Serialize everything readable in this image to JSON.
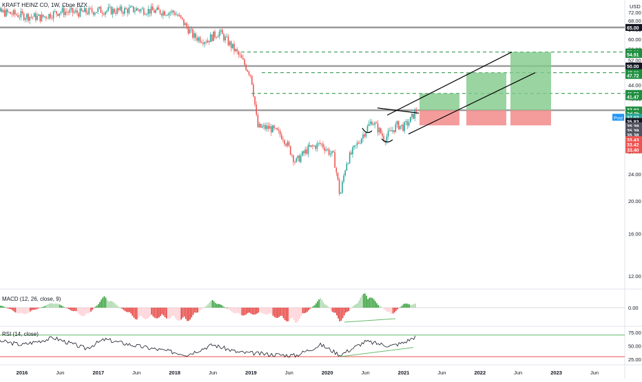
{
  "header": {
    "symbol_line": "KRAFT HEINZ CO, 1W, Cboe BZX",
    "currency": "USD"
  },
  "colors": {
    "up": "#26a69a",
    "down": "#ef5350",
    "hline": "#9a9a9a",
    "target_dash": "#1e8e3e",
    "profit_zone": "#7fc98a",
    "stop_zone": "#f28b8b",
    "macd_up_strong": "#2e9d33",
    "macd_up_weak": "#a5d6a7",
    "macd_down_strong": "#e53935",
    "macd_down_weak": "#ffcdd2",
    "rsi_line": "#131722",
    "rsi_upper": "#4caf50",
    "rsi_lower": "#e53935",
    "trendline": "#000000",
    "divergence": "#66bb6a"
  },
  "price_axis": {
    "ticks": [
      "72.00",
      "68.00",
      "64.00",
      "60.00",
      "56.00",
      "52.00",
      "48.00",
      "44.00",
      "40.00",
      "36.00",
      "32.00",
      "28.00",
      "24.00",
      "20.00",
      "16.00",
      "12.00"
    ]
  },
  "time_axis": {
    "labels": [
      "2016",
      "Jun",
      "2017",
      "Jun",
      "2018",
      "Jun",
      "2019",
      "Jun",
      "2020",
      "Jun",
      "2021",
      "Jun",
      "2022",
      "Jun",
      "2023",
      "Jun"
    ],
    "bold": [
      "2016",
      "2017",
      "2018",
      "2019",
      "2020",
      "2021",
      "2022",
      "2023"
    ]
  },
  "price_labels": [
    {
      "text": "65.00",
      "price": 65.0,
      "bg": "#131722",
      "fg": "#ffffff"
    },
    {
      "text": "55.00",
      "price": 55.0,
      "bg": "#1e8e3e",
      "fg": "#ffffff"
    },
    {
      "text": "54.91",
      "price": 54.1,
      "bg": "#1e8e3e",
      "fg": "#ffffff"
    },
    {
      "text": "50.00",
      "price": 50.0,
      "bg": "#131722",
      "fg": "#ffffff"
    },
    {
      "text": "47.80",
      "price": 47.8,
      "bg": "#1e8e3e",
      "fg": "#ffffff"
    },
    {
      "text": "47.72",
      "price": 46.9,
      "bg": "#1e8e3e",
      "fg": "#ffffff"
    },
    {
      "text": "41.50",
      "price": 41.5,
      "bg": "#1e8e3e",
      "fg": "#ffffff"
    },
    {
      "text": "41.47",
      "price": 40.6,
      "bg": "#1e8e3e",
      "fg": "#ffffff"
    },
    {
      "text": "37.02",
      "price": 37.1,
      "bg": "#1e8e3e",
      "fg": "#ffffff"
    },
    {
      "text": "2d 0h",
      "price": 36.2,
      "bg": "#1e8e3e",
      "fg": "#ffffff"
    },
    {
      "text": "37.02",
      "price": 35.3,
      "bg": "#26a69a",
      "fg": "#ffffff"
    },
    {
      "text": "35.83",
      "price": 34.3,
      "bg": "#131722",
      "fg": "#ffffff"
    },
    {
      "text": "35.39",
      "price": 33.3,
      "bg": "#50535e",
      "fg": "#ffffff"
    },
    {
      "text": "35.39",
      "price": 32.3,
      "bg": "#50535e",
      "fg": "#ffffff"
    },
    {
      "text": "35.38",
      "price": 31.3,
      "bg": "#50535e",
      "fg": "#ffffff"
    },
    {
      "text": "33.43",
      "price": 30.3,
      "bg": "#ef5350",
      "fg": "#ffffff"
    },
    {
      "text": "33.42",
      "price": 29.3,
      "bg": "#ef5350",
      "fg": "#ffffff"
    },
    {
      "text": "33.40",
      "price": 28.3,
      "bg": "#ef5350",
      "fg": "#ffffff"
    }
  ],
  "post_badge": "Post",
  "macd": {
    "title": "MACD (12, 26, close, 9)",
    "tick": "0.00"
  },
  "rsi": {
    "title": "RSI (14, close)",
    "ticks": [
      "75.00",
      "50.00",
      "25.00"
    ],
    "upper": 70,
    "lower": 30
  },
  "chart_data": {
    "type": "candlestick",
    "symbol": "KRAFT HEINZ CO",
    "interval": "1W",
    "exchange": "Cboe BZX",
    "currency": "USD",
    "ylim": [
      10,
      74
    ],
    "close_series": {
      "dates": [
        "2015-07",
        "2015-10",
        "2016-01",
        "2016-04",
        "2016-07",
        "2016-10",
        "2017-01",
        "2017-04",
        "2017-07",
        "2017-10",
        "2018-01",
        "2018-02",
        "2018-04",
        "2018-06",
        "2018-08",
        "2018-10",
        "2018-11",
        "2019-01",
        "2019-02",
        "2019-04",
        "2019-06",
        "2019-08",
        "2019-10",
        "2019-12",
        "2020-02",
        "2020-03",
        "2020-04",
        "2020-06",
        "2020-08",
        "2020-10",
        "2020-12",
        "2021-01",
        "2021-02",
        "2021-03"
      ],
      "values": [
        71.5,
        72.0,
        70.5,
        69.5,
        72.5,
        71.8,
        73.0,
        72.8,
        73.5,
        72.6,
        72.0,
        68.5,
        61.0,
        59.5,
        63.0,
        57.0,
        54.0,
        47.0,
        33.0,
        32.8,
        31.0,
        26.0,
        28.5,
        29.5,
        27.0,
        20.5,
        26.0,
        30.0,
        34.5,
        30.5,
        33.5,
        33.0,
        34.5,
        37.0
      ]
    },
    "horizontal_levels": [
      65.0,
      50.0,
      37.02
    ],
    "targets": [
      41.5,
      47.8,
      55.0
    ],
    "trade_entry": 37.02,
    "trade_stop": 33.4,
    "macd_histogram": {
      "dates": [
        "2015-08",
        "2016-01",
        "2016-06",
        "2016-11",
        "2017-02",
        "2017-07",
        "2017-11",
        "2018-03",
        "2018-07",
        "2018-11",
        "2019-03",
        "2019-08",
        "2019-12",
        "2020-03",
        "2020-07",
        "2020-11",
        "2021-01",
        "2021-03"
      ],
      "values": [
        0.4,
        -0.4,
        0.3,
        -0.5,
        0.6,
        -0.6,
        -0.5,
        -0.7,
        0.4,
        -0.4,
        -0.3,
        -0.8,
        0.5,
        -0.7,
        0.8,
        -0.4,
        0.2,
        0.2
      ]
    },
    "rsi_values": {
      "dates": [
        "2015-08",
        "2016-01",
        "2016-06",
        "2016-11",
        "2017-02",
        "2017-07",
        "2017-11",
        "2018-03",
        "2018-07",
        "2018-11",
        "2019-03",
        "2019-08",
        "2019-12",
        "2020-03",
        "2020-07",
        "2020-11",
        "2021-01",
        "2021-03"
      ],
      "values": [
        62,
        52,
        65,
        45,
        62,
        50,
        42,
        34,
        52,
        38,
        35,
        32,
        52,
        33,
        58,
        50,
        56,
        68
      ]
    }
  }
}
